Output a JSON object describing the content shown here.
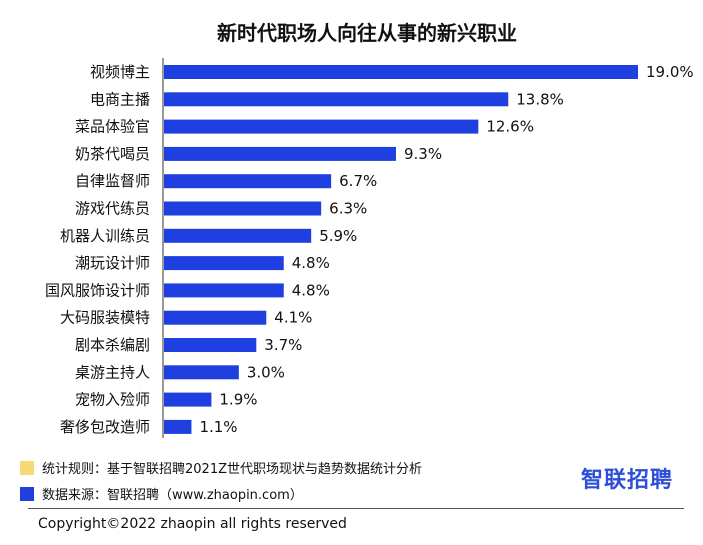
{
  "colors": {
    "bar": "#1f3fe0",
    "note_swatch": "#f7d873",
    "source_swatch": "#1f3fe0",
    "logo": "#2d4ed8"
  },
  "chart_data": {
    "type": "bar",
    "orientation": "horizontal",
    "title": "新时代职场人向往从事的新兴职业",
    "categories": [
      "视频博主",
      "电商主播",
      "菜品体验官",
      "奶茶代喝员",
      "自律监督师",
      "游戏代练员",
      "机器人训练员",
      "潮玩设计师",
      "国风服饰设计师",
      "大码服装模特",
      "剧本杀编剧",
      "桌游主持人",
      "宠物入殓师",
      "奢侈包改造师"
    ],
    "values": [
      19.0,
      13.8,
      12.6,
      9.3,
      6.7,
      6.3,
      5.9,
      4.8,
      4.8,
      4.1,
      3.7,
      3.0,
      1.9,
      1.1
    ],
    "value_labels": [
      "19.0%",
      "13.8%",
      "12.6%",
      "9.3%",
      "6.7%",
      "6.3%",
      "5.9%",
      "4.8%",
      "4.8%",
      "4.1%",
      "3.7%",
      "3.0%",
      "1.9%",
      "1.1%"
    ],
    "xlim": [
      0,
      19.0
    ],
    "grid": false
  },
  "legend": {
    "note": "统计规则：基于智联招聘2021Z世代职场现状与趋势数据统计分析",
    "source": "数据来源：智联招聘（www.zhaopin.com）"
  },
  "logo_text": "智联招聘",
  "copyright": "Copyright©2022 zhaopin all rights reserved"
}
